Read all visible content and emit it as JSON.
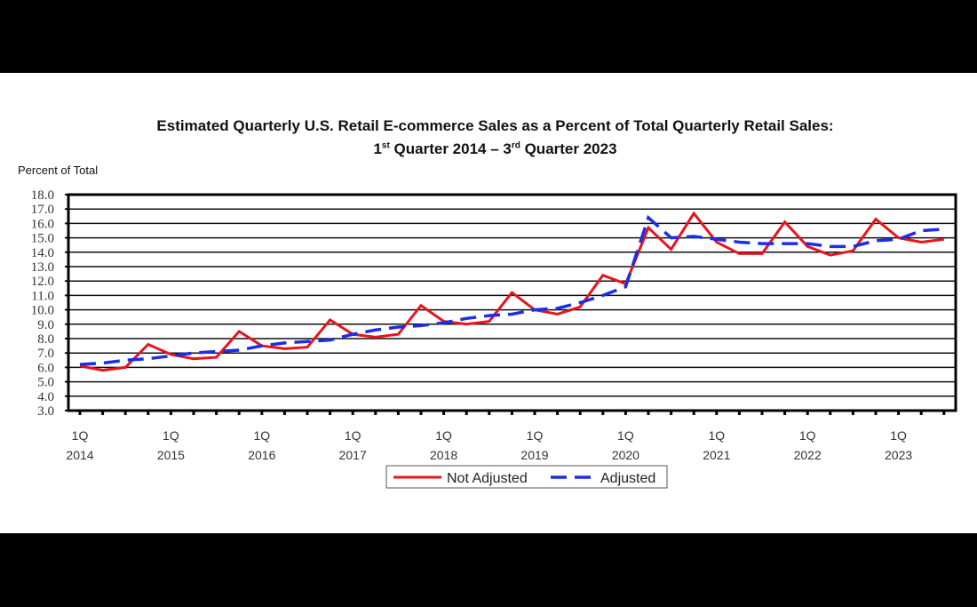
{
  "chart_data": {
    "type": "line",
    "title_line1": "Estimated Quarterly U.S. Retail E-commerce Sales as a Percent of Total Quarterly Retail Sales:",
    "title_line2": {
      "a": "1",
      "a_sup": "st",
      "b": " Quarter 2014 – 3",
      "b_sup": "rd",
      "c": " Quarter 2023"
    },
    "ylabel": "Percent of Total",
    "ylim": [
      3.0,
      18.0
    ],
    "yticks": [
      "3.0",
      "4.0",
      "5.0",
      "6.0",
      "7.0",
      "8.0",
      "9.0",
      "10.0",
      "11.0",
      "12.0",
      "13.0",
      "14.0",
      "15.0",
      "16.0",
      "17.0",
      "18.0"
    ],
    "grid": true,
    "x_tick_labels": [
      {
        "q": "1Q",
        "year": "2014"
      },
      {
        "q": "1Q",
        "year": "2015"
      },
      {
        "q": "1Q",
        "year": "2016"
      },
      {
        "q": "1Q",
        "year": "2017"
      },
      {
        "q": "1Q",
        "year": "2018"
      },
      {
        "q": "1Q",
        "year": "2019"
      },
      {
        "q": "1Q",
        "year": "2020"
      },
      {
        "q": "1Q",
        "year": "2021"
      },
      {
        "q": "1Q",
        "year": "2022"
      },
      {
        "q": "1Q",
        "year": "2023"
      }
    ],
    "legend_position": "bottom-center",
    "series": [
      {
        "name": "Not Adjusted",
        "color": "#e8141c",
        "style": "solid",
        "values": [
          6.1,
          5.8,
          6.0,
          7.6,
          6.9,
          6.6,
          6.7,
          8.5,
          7.5,
          7.3,
          7.4,
          9.3,
          8.3,
          8.1,
          8.3,
          10.3,
          9.2,
          9.0,
          9.2,
          11.2,
          10.0,
          9.7,
          10.2,
          12.4,
          11.8,
          15.7,
          14.2,
          16.7,
          14.7,
          13.9,
          13.9,
          16.1,
          14.4,
          13.8,
          14.1,
          16.3,
          15.0,
          14.7,
          14.9
        ]
      },
      {
        "name": "Adjusted",
        "color": "#1a2ee8",
        "style": "dashed",
        "values": [
          6.2,
          6.3,
          6.5,
          6.6,
          6.8,
          7.0,
          7.1,
          7.2,
          7.5,
          7.7,
          7.8,
          7.9,
          8.3,
          8.6,
          8.8,
          8.9,
          9.1,
          9.4,
          9.6,
          9.7,
          10.0,
          10.1,
          10.5,
          11.0,
          11.6,
          16.4,
          15.0,
          15.1,
          14.9,
          14.7,
          14.6,
          14.6,
          14.6,
          14.4,
          14.4,
          14.8,
          14.9,
          15.5,
          15.6
        ]
      }
    ]
  }
}
